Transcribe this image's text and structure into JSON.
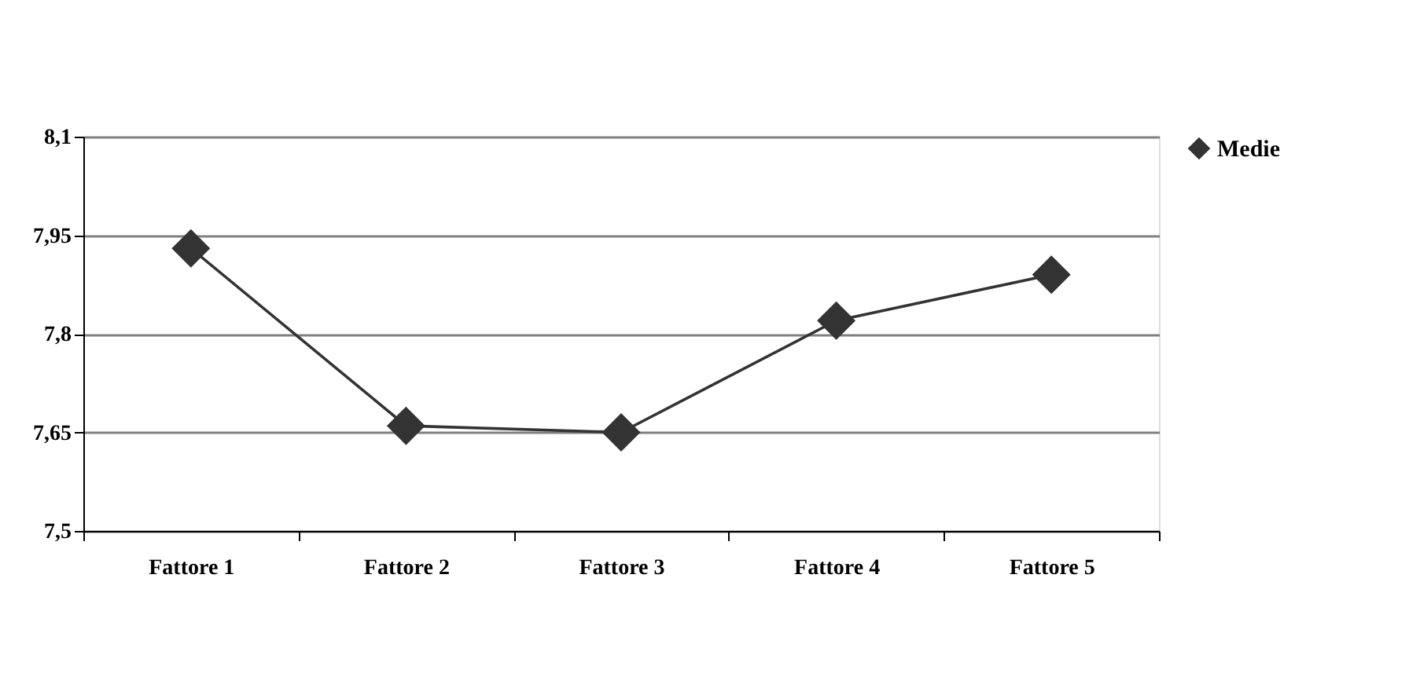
{
  "chart_data": {
    "type": "line",
    "categories": [
      "Fattore 1",
      "Fattore 2",
      "Fattore 3",
      "Fattore 4",
      "Fattore 5"
    ],
    "series": [
      {
        "name": "Medie",
        "color": "#333333",
        "values": [
          7.93,
          7.66,
          7.65,
          7.82,
          7.89
        ]
      }
    ],
    "ylim": [
      7.5,
      8.1
    ],
    "yticks": [
      {
        "value": 7.5,
        "label": "7,5"
      },
      {
        "value": 7.65,
        "label": "7,65"
      },
      {
        "value": 7.8,
        "label": "7,8"
      },
      {
        "value": 7.95,
        "label": "7,95"
      },
      {
        "value": 8.1,
        "label": "8,1"
      }
    ],
    "grid": "y",
    "legend": "right",
    "marker": "diamond",
    "line_style": "solid"
  }
}
